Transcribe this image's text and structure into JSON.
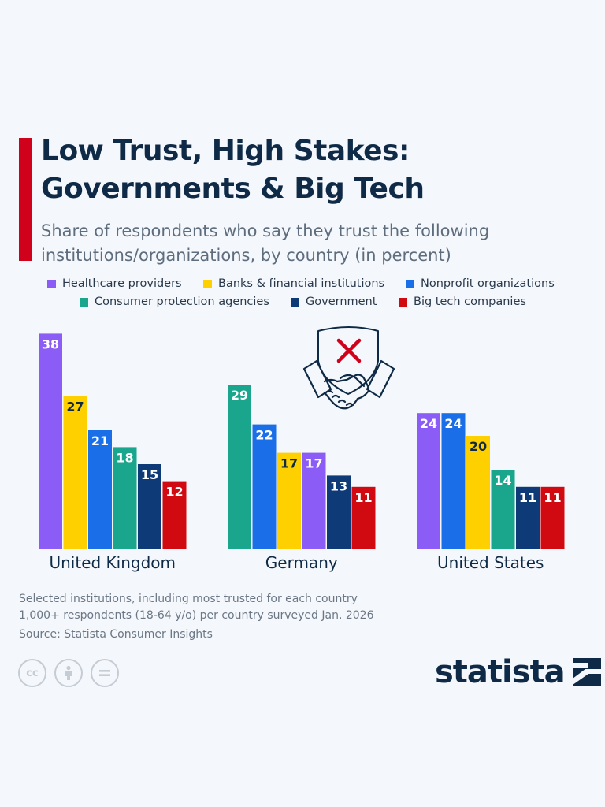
{
  "header": {
    "title_line1": "Low Trust, High Stakes:",
    "title_line2": "Governments & Big Tech",
    "subtitle_line1": "Share of respondents who say they trust the following",
    "subtitle_line2": "institutions/organizations, by country (in percent)"
  },
  "colors": {
    "accent": "#d0021b",
    "healthcare": "#8b5cf6",
    "banks": "#ffd000",
    "nonprofit": "#1a6fe8",
    "consumer": "#19a68c",
    "government": "#0f3a78",
    "bigtech": "#d10a12",
    "icon_red": "#d0021b",
    "icon_navy": "#0f2a46"
  },
  "chart_data": {
    "type": "bar",
    "title": "Low Trust, High Stakes: Governments & Big Tech",
    "subtitle": "Share of respondents who say they trust the following institutions/organizations, by country (in percent)",
    "ylim": [
      0,
      40
    ],
    "legend": [
      {
        "key": "healthcare",
        "label": "Healthcare providers"
      },
      {
        "key": "banks",
        "label": "Banks & financial institutions"
      },
      {
        "key": "nonprofit",
        "label": "Nonprofit organizations"
      },
      {
        "key": "consumer",
        "label": "Consumer protection agencies"
      },
      {
        "key": "government",
        "label": "Government"
      },
      {
        "key": "bigtech",
        "label": "Big tech companies"
      }
    ],
    "groups": [
      {
        "country": "United Kingdom",
        "bars": [
          {
            "key": "healthcare",
            "value": 38
          },
          {
            "key": "banks",
            "value": 27
          },
          {
            "key": "nonprofit",
            "value": 21
          },
          {
            "key": "consumer",
            "value": 18
          },
          {
            "key": "government",
            "value": 15
          },
          {
            "key": "bigtech",
            "value": 12
          }
        ]
      },
      {
        "country": "Germany",
        "bars": [
          {
            "key": "consumer",
            "value": 29
          },
          {
            "key": "nonprofit",
            "value": 22
          },
          {
            "key": "banks",
            "value": 17
          },
          {
            "key": "healthcare",
            "value": 17
          },
          {
            "key": "government",
            "value": 13
          },
          {
            "key": "bigtech",
            "value": 11
          }
        ]
      },
      {
        "country": "United States",
        "bars": [
          {
            "key": "healthcare",
            "value": 24
          },
          {
            "key": "nonprofit",
            "value": 24
          },
          {
            "key": "banks",
            "value": 20
          },
          {
            "key": "consumer",
            "value": 14
          },
          {
            "key": "government",
            "value": 11
          },
          {
            "key": "bigtech",
            "value": 11
          }
        ]
      }
    ]
  },
  "notes": {
    "line1": "Selected institutions, including most trusted for each country",
    "line2": "1,000+ respondents (18-64 y/o) per country surveyed Jan. 2026",
    "source": "Source: Statista Consumer Insights"
  },
  "license": {
    "cc": "cc",
    "by": "person-icon",
    "nd": "equals-icon"
  },
  "brand": {
    "name": "statista"
  }
}
